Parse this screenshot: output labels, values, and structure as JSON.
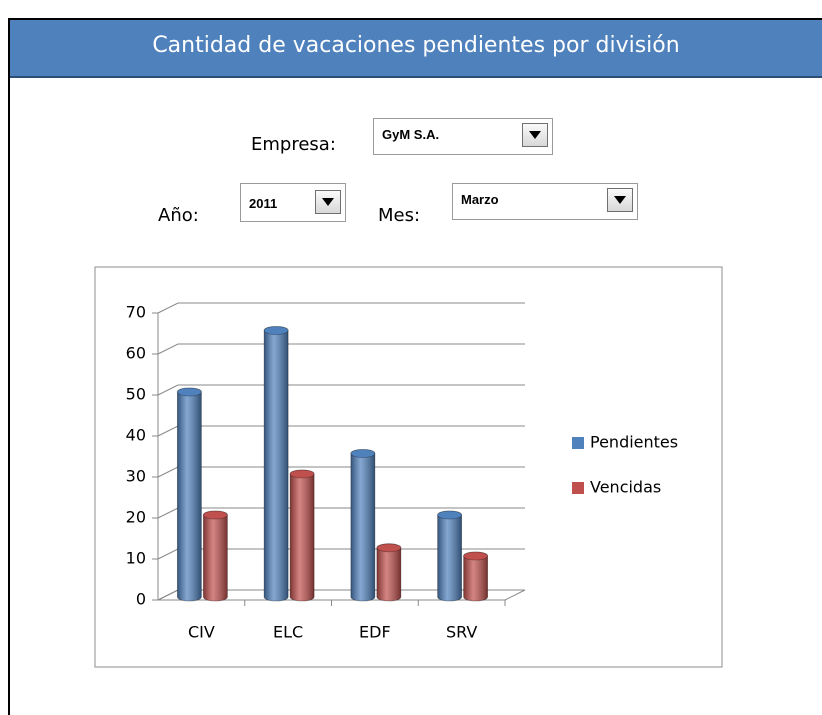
{
  "header": {
    "title": "Cantidad de vacaciones pendientes por división"
  },
  "form": {
    "empresa_label": "Empresa:",
    "empresa_value": "GyM S.A.",
    "anio_label": "Año:",
    "anio_value": "2011",
    "mes_label": "Mes:",
    "mes_value": "Marzo"
  },
  "chart_data": {
    "type": "bar3d",
    "categories": [
      "CIV",
      "ELC",
      "EDF",
      "SRV"
    ],
    "series": [
      {
        "name": "Pendientes",
        "color": "#4f81bd",
        "values": [
          50,
          65,
          35,
          20
        ]
      },
      {
        "name": "Vencidas",
        "color": "#c0504d",
        "values": [
          20,
          30,
          12,
          10
        ]
      }
    ],
    "ylim": [
      0,
      70
    ],
    "yticks": [
      0,
      10,
      20,
      30,
      40,
      50,
      60,
      70
    ],
    "grid": true,
    "legend": "right"
  }
}
